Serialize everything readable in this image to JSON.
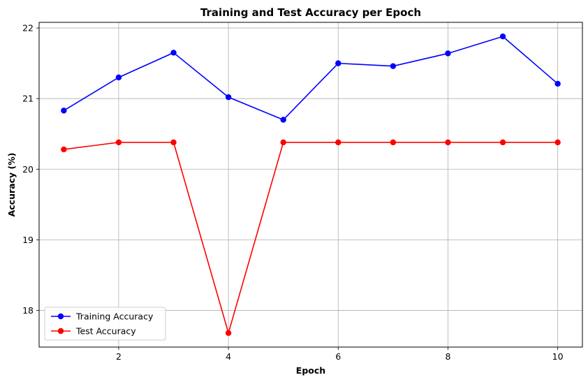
{
  "chart_data": {
    "type": "line",
    "title": "Training and Test Accuracy per Epoch",
    "xlabel": "Epoch",
    "ylabel": "Accuracy (%)",
    "x": [
      1,
      2,
      3,
      4,
      5,
      6,
      7,
      8,
      9,
      10
    ],
    "xlim": [
      0.55,
      10.45
    ],
    "ylim": [
      17.48,
      22.08
    ],
    "xticks": [
      2,
      4,
      6,
      8,
      10
    ],
    "yticks": [
      18,
      19,
      20,
      21,
      22
    ],
    "grid": true,
    "legend_position": "lower left",
    "series": [
      {
        "name": "Training Accuracy",
        "color": "#0000ff",
        "marker": "circle",
        "values": [
          20.83,
          21.3,
          21.65,
          21.02,
          20.7,
          21.5,
          21.46,
          21.64,
          21.88,
          21.21
        ]
      },
      {
        "name": "Test Accuracy",
        "color": "#ff0000",
        "marker": "circle",
        "values": [
          20.28,
          20.38,
          20.38,
          17.68,
          20.38,
          20.38,
          20.38,
          20.38,
          20.38,
          20.38
        ]
      }
    ]
  }
}
